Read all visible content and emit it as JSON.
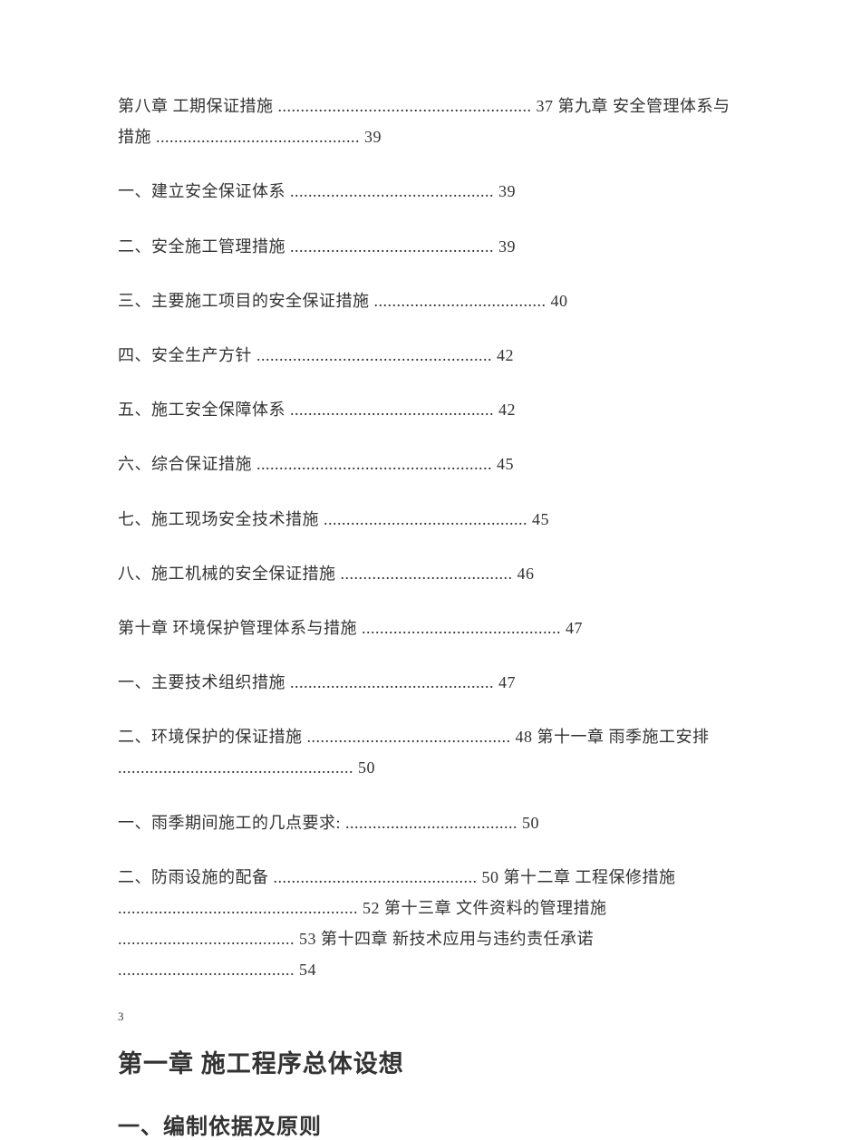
{
  "toc": {
    "block1": "第八章 工期保证措施 ........................................................ 37 第九章 安全管理体系与措施 ............................................. 39",
    "block2": "一、建立安全保证体系 ............................................. 39",
    "block3": "二、安全施工管理措施 ............................................. 39",
    "block4": "三、主要施工项目的安全保证措施 ...................................... 40",
    "block5": "四、安全生产方针 .................................................... 42",
    "block6": "五、施工安全保障体系 ............................................. 42",
    "block7": "六、综合保证措施 .................................................... 45",
    "block8": "七、施工现场安全技术措施 ............................................. 45",
    "block9": "八、施工机械的安全保证措施 ...................................... 46",
    "block10": "第十章 环境保护管理体系与措施 ............................................ 47",
    "block11": "一、主要技术组织措施 ............................................. 47",
    "block12": "二、环境保护的保证措施 ............................................. 48 第十一章 雨季施工安排 .................................................... 50",
    "block13": "一、雨季期间施工的几点要求: ...................................... 50",
    "block14": "二、防雨设施的配备 ............................................. 50 第十二章 工程保修措施 ..................................................... 52 第十三章 文件资料的管理措施 ....................................... 53 第十四章 新技术应用与违约责任承诺 ....................................... 54"
  },
  "page_number": "3",
  "heading1": "第一章 施工程序总体设想",
  "heading2": "一、编制依据及原则"
}
